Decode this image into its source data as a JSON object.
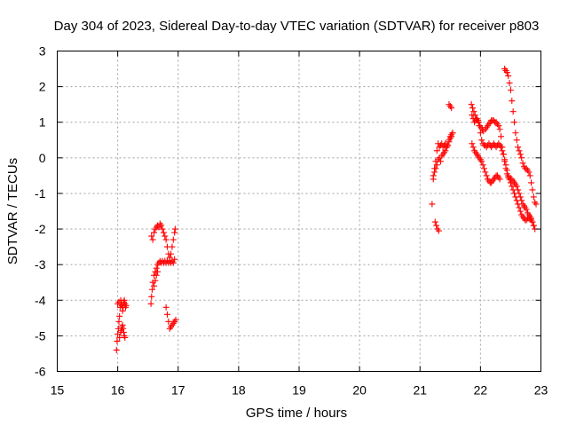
{
  "chart_data": {
    "type": "scatter",
    "title": "Day 304 of 2023, Sidereal Day-to-day VTEC variation (SDTVAR) for receiver p803",
    "xlabel": "GPS time / hours",
    "ylabel": "SDTVAR / TECUs",
    "xlim": [
      15,
      23
    ],
    "ylim": [
      -6,
      3
    ],
    "xticks": [
      15,
      16,
      17,
      18,
      19,
      20,
      21,
      22,
      23
    ],
    "yticks": [
      -6,
      -5,
      -4,
      -3,
      -2,
      -1,
      0,
      1,
      2,
      3
    ],
    "grid": true,
    "legend": "none",
    "marker": "plus",
    "series_color": "#ff0000",
    "series": [
      {
        "name": "SDTVAR",
        "points": [
          [
            15.98,
            -5.4
          ],
          [
            15.99,
            -5.15
          ],
          [
            16.0,
            -4.95
          ],
          [
            16.01,
            -4.8
          ],
          [
            16.02,
            -4.6
          ],
          [
            16.03,
            -4.45
          ],
          [
            16.0,
            -4.1
          ],
          [
            16.02,
            -4.05
          ],
          [
            16.04,
            -4.2
          ],
          [
            16.05,
            -4.0
          ],
          [
            16.06,
            -4.1
          ],
          [
            16.07,
            -4.15
          ],
          [
            16.03,
            -5.05
          ],
          [
            16.05,
            -4.9
          ],
          [
            16.06,
            -4.85
          ],
          [
            16.07,
            -4.75
          ],
          [
            16.08,
            -4.7
          ],
          [
            16.09,
            -4.8
          ],
          [
            16.1,
            -4.9
          ],
          [
            16.11,
            -5.0
          ],
          [
            16.12,
            -5.05
          ],
          [
            16.08,
            -4.3
          ],
          [
            16.09,
            -4.2
          ],
          [
            16.1,
            -4.05
          ],
          [
            16.11,
            -4.0
          ],
          [
            16.12,
            -4.1
          ],
          [
            16.13,
            -4.2
          ],
          [
            16.14,
            -4.15
          ],
          [
            16.55,
            -4.1
          ],
          [
            16.56,
            -3.9
          ],
          [
            16.57,
            -3.7
          ],
          [
            16.58,
            -3.5
          ],
          [
            16.6,
            -3.3
          ],
          [
            16.62,
            -3.2
          ],
          [
            16.64,
            -3.1
          ],
          [
            16.66,
            -3.0
          ],
          [
            16.68,
            -2.95
          ],
          [
            16.7,
            -2.9
          ],
          [
            16.72,
            -2.95
          ],
          [
            16.74,
            -2.9
          ],
          [
            16.76,
            -2.95
          ],
          [
            16.78,
            -2.9
          ],
          [
            16.8,
            -2.95
          ],
          [
            16.82,
            -2.9
          ],
          [
            16.84,
            -2.95
          ],
          [
            16.86,
            -2.9
          ],
          [
            16.88,
            -2.95
          ],
          [
            16.9,
            -2.9
          ],
          [
            16.92,
            -2.95
          ],
          [
            16.94,
            -2.85
          ],
          [
            16.56,
            -2.2
          ],
          [
            16.58,
            -2.3
          ],
          [
            16.6,
            -2.1
          ],
          [
            16.62,
            -2.0
          ],
          [
            16.64,
            -1.95
          ],
          [
            16.66,
            -1.9
          ],
          [
            16.68,
            -1.95
          ],
          [
            16.7,
            -1.85
          ],
          [
            16.72,
            -1.9
          ],
          [
            16.74,
            -2.0
          ],
          [
            16.76,
            -2.1
          ],
          [
            16.78,
            -2.2
          ],
          [
            16.8,
            -2.3
          ],
          [
            16.82,
            -2.5
          ],
          [
            16.84,
            -2.7
          ],
          [
            16.86,
            -2.8
          ],
          [
            16.88,
            -2.7
          ],
          [
            16.9,
            -2.5
          ],
          [
            16.92,
            -2.3
          ],
          [
            16.94,
            -2.1
          ],
          [
            16.95,
            -2.0
          ],
          [
            16.6,
            -3.6
          ],
          [
            16.62,
            -3.45
          ],
          [
            16.64,
            -3.3
          ],
          [
            16.66,
            -3.2
          ],
          [
            16.8,
            -4.2
          ],
          [
            16.82,
            -4.4
          ],
          [
            16.84,
            -4.6
          ],
          [
            16.86,
            -4.8
          ],
          [
            16.88,
            -4.75
          ],
          [
            16.9,
            -4.7
          ],
          [
            16.92,
            -4.65
          ],
          [
            16.94,
            -4.6
          ],
          [
            16.96,
            -4.55
          ],
          [
            21.2,
            -1.3
          ],
          [
            21.22,
            -0.6
          ],
          [
            21.24,
            -0.3
          ],
          [
            21.26,
            -0.1
          ],
          [
            21.28,
            0.2
          ],
          [
            21.3,
            0.4
          ],
          [
            21.32,
            0.3
          ],
          [
            21.34,
            0.35
          ],
          [
            21.36,
            0.4
          ],
          [
            21.38,
            0.3
          ],
          [
            21.4,
            0.35
          ],
          [
            21.42,
            0.4
          ],
          [
            21.44,
            0.3
          ],
          [
            21.46,
            0.35
          ],
          [
            21.48,
            0.5
          ],
          [
            21.5,
            0.6
          ],
          [
            21.52,
            0.65
          ],
          [
            21.54,
            0.7
          ],
          [
            21.22,
            -0.5
          ],
          [
            21.24,
            -0.4
          ],
          [
            21.26,
            -0.3
          ],
          [
            21.28,
            -0.2
          ],
          [
            21.3,
            -0.05
          ],
          [
            21.32,
            0.0
          ],
          [
            21.34,
            -0.1
          ],
          [
            21.36,
            0.05
          ],
          [
            21.38,
            0.1
          ],
          [
            21.4,
            0.15
          ],
          [
            21.42,
            0.2
          ],
          [
            21.44,
            0.3
          ],
          [
            21.46,
            0.35
          ],
          [
            21.48,
            0.45
          ],
          [
            21.5,
            0.55
          ],
          [
            21.52,
            0.6
          ],
          [
            21.54,
            0.7
          ],
          [
            21.25,
            -1.8
          ],
          [
            21.27,
            -1.9
          ],
          [
            21.29,
            -2.0
          ],
          [
            21.31,
            -2.05
          ],
          [
            21.48,
            1.5
          ],
          [
            21.5,
            1.45
          ],
          [
            21.52,
            1.4
          ],
          [
            21.85,
            1.5
          ],
          [
            21.87,
            1.4
          ],
          [
            21.89,
            1.3
          ],
          [
            21.91,
            1.2
          ],
          [
            21.93,
            1.1
          ],
          [
            21.95,
            1.05
          ],
          [
            21.97,
            1.0
          ],
          [
            21.99,
            0.9
          ],
          [
            22.01,
            0.85
          ],
          [
            22.03,
            0.8
          ],
          [
            22.05,
            0.75
          ],
          [
            22.08,
            0.8
          ],
          [
            22.1,
            0.85
          ],
          [
            22.12,
            0.9
          ],
          [
            22.14,
            0.95
          ],
          [
            22.16,
            1.0
          ],
          [
            22.18,
            1.05
          ],
          [
            22.2,
            1.05
          ],
          [
            22.22,
            1.05
          ],
          [
            22.24,
            1.0
          ],
          [
            22.26,
            1.0
          ],
          [
            22.28,
            0.95
          ],
          [
            22.3,
            0.9
          ],
          [
            22.32,
            0.8
          ],
          [
            22.34,
            0.6
          ],
          [
            22.36,
            0.3
          ],
          [
            22.38,
            0.1
          ],
          [
            22.4,
            -0.1
          ],
          [
            22.42,
            -0.3
          ],
          [
            22.44,
            -0.45
          ],
          [
            22.46,
            -0.55
          ],
          [
            22.48,
            -0.6
          ],
          [
            22.5,
            -0.7
          ],
          [
            22.52,
            -0.8
          ],
          [
            22.54,
            -0.9
          ],
          [
            22.56,
            -1.0
          ],
          [
            22.58,
            -1.1
          ],
          [
            22.6,
            -1.2
          ],
          [
            22.62,
            -1.3
          ],
          [
            22.64,
            -1.4
          ],
          [
            22.66,
            -1.5
          ],
          [
            22.68,
            -1.6
          ],
          [
            22.7,
            -1.65
          ],
          [
            22.72,
            -1.7
          ],
          [
            22.74,
            -1.75
          ],
          [
            22.76,
            -1.75
          ],
          [
            22.78,
            -1.7
          ],
          [
            22.8,
            -1.7
          ],
          [
            22.82,
            -1.65
          ],
          [
            22.84,
            -1.7
          ],
          [
            22.86,
            -1.8
          ],
          [
            22.88,
            -1.9
          ],
          [
            22.9,
            -2.0
          ],
          [
            21.86,
            1.2
          ],
          [
            21.88,
            1.1
          ],
          [
            21.9,
            1.0
          ],
          [
            21.92,
            1.05
          ],
          [
            21.94,
            1.1
          ],
          [
            21.96,
            1.05
          ],
          [
            21.98,
            0.9
          ],
          [
            22.0,
            0.7
          ],
          [
            22.02,
            0.5
          ],
          [
            22.04,
            0.4
          ],
          [
            22.06,
            0.35
          ],
          [
            22.08,
            0.35
          ],
          [
            22.1,
            0.3
          ],
          [
            22.12,
            0.35
          ],
          [
            22.14,
            0.4
          ],
          [
            22.16,
            0.35
          ],
          [
            22.18,
            0.3
          ],
          [
            22.2,
            0.35
          ],
          [
            22.22,
            0.4
          ],
          [
            22.24,
            0.35
          ],
          [
            22.26,
            0.3
          ],
          [
            22.28,
            0.35
          ],
          [
            22.3,
            0.4
          ],
          [
            22.32,
            0.35
          ],
          [
            22.34,
            0.3
          ],
          [
            22.36,
            0.2
          ],
          [
            22.38,
            0.1
          ],
          [
            22.4,
            -0.05
          ],
          [
            22.42,
            -0.2
          ],
          [
            22.44,
            -0.35
          ],
          [
            22.46,
            -0.5
          ],
          [
            22.48,
            -0.6
          ],
          [
            22.5,
            -0.6
          ],
          [
            22.52,
            -0.6
          ],
          [
            22.54,
            -0.65
          ],
          [
            22.56,
            -0.7
          ],
          [
            22.58,
            -0.75
          ],
          [
            22.6,
            -0.8
          ],
          [
            22.62,
            -0.9
          ],
          [
            22.64,
            -1.0
          ],
          [
            22.66,
            -1.1
          ],
          [
            22.68,
            -1.2
          ],
          [
            22.7,
            -1.3
          ],
          [
            22.72,
            -1.35
          ],
          [
            22.74,
            -1.4
          ],
          [
            22.76,
            -1.45
          ],
          [
            22.78,
            -1.55
          ],
          [
            22.8,
            -1.6
          ],
          [
            22.82,
            -1.7
          ],
          [
            22.84,
            -1.75
          ],
          [
            22.86,
            -1.8
          ],
          [
            22.88,
            -1.9
          ],
          [
            21.86,
            0.4
          ],
          [
            21.88,
            0.3
          ],
          [
            21.9,
            0.2
          ],
          [
            21.92,
            0.15
          ],
          [
            21.94,
            0.1
          ],
          [
            21.96,
            0.05
          ],
          [
            21.98,
            0.0
          ],
          [
            22.0,
            -0.05
          ],
          [
            22.02,
            -0.1
          ],
          [
            22.04,
            -0.2
          ],
          [
            22.06,
            -0.3
          ],
          [
            22.08,
            -0.4
          ],
          [
            22.1,
            -0.5
          ],
          [
            22.12,
            -0.6
          ],
          [
            22.14,
            -0.65
          ],
          [
            22.16,
            -0.7
          ],
          [
            22.18,
            -0.7
          ],
          [
            22.2,
            -0.65
          ],
          [
            22.22,
            -0.6
          ],
          [
            22.24,
            -0.55
          ],
          [
            22.26,
            -0.5
          ],
          [
            22.28,
            -0.5
          ],
          [
            22.3,
            -0.55
          ],
          [
            22.32,
            -0.6
          ],
          [
            22.4,
            2.5
          ],
          [
            22.42,
            2.45
          ],
          [
            22.44,
            2.4
          ],
          [
            22.46,
            2.3
          ],
          [
            22.48,
            2.1
          ],
          [
            22.5,
            1.9
          ],
          [
            22.52,
            1.6
          ],
          [
            22.54,
            1.3
          ],
          [
            22.56,
            1.0
          ],
          [
            22.58,
            0.7
          ],
          [
            22.6,
            0.5
          ],
          [
            22.62,
            0.3
          ],
          [
            22.64,
            0.2
          ],
          [
            22.66,
            0.1
          ],
          [
            22.68,
            0.0
          ],
          [
            22.7,
            -0.15
          ],
          [
            22.72,
            -0.25
          ],
          [
            22.74,
            -0.3
          ],
          [
            22.76,
            -0.3
          ],
          [
            22.78,
            -0.35
          ],
          [
            22.8,
            -0.4
          ],
          [
            22.82,
            -0.5
          ],
          [
            22.84,
            -0.7
          ],
          [
            22.86,
            -0.9
          ],
          [
            22.88,
            -1.1
          ],
          [
            22.9,
            -1.25
          ],
          [
            22.92,
            -1.3
          ]
        ]
      }
    ]
  }
}
